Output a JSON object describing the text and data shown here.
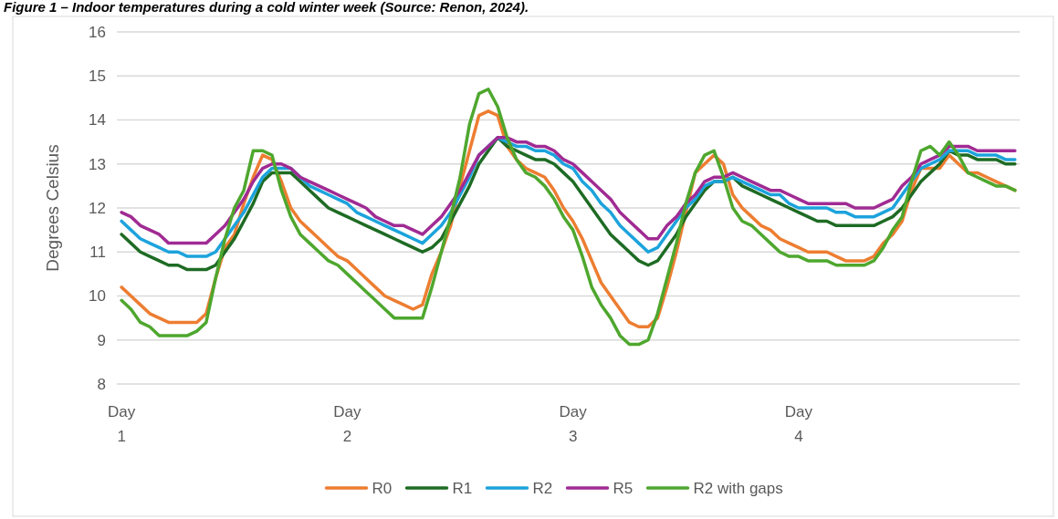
{
  "chart_data": {
    "type": "line",
    "title": "Figure 1 – Indoor temperatures during a cold winter week (Source: Renon, 2024).",
    "ylabel": "Degrees Celsius",
    "categories": [
      "Day 1",
      null,
      null,
      null,
      null,
      null,
      null,
      null,
      null,
      null,
      null,
      null,
      null,
      null,
      null,
      null,
      null,
      null,
      null,
      null,
      null,
      null,
      null,
      null,
      "Day 2",
      null,
      null,
      null,
      null,
      null,
      null,
      null,
      null,
      null,
      null,
      null,
      null,
      null,
      null,
      null,
      null,
      null,
      null,
      null,
      null,
      null,
      null,
      null,
      "Day 3",
      null,
      null,
      null,
      null,
      null,
      null,
      null,
      null,
      null,
      null,
      null,
      null,
      null,
      null,
      null,
      null,
      null,
      null,
      null,
      null,
      null,
      null,
      null,
      "Day 4",
      null,
      null,
      null,
      null,
      null,
      null,
      null,
      null,
      null,
      null,
      null,
      null,
      null,
      null,
      null,
      null,
      null,
      null,
      null,
      null,
      null,
      null,
      null
    ],
    "ylim": [
      8,
      16
    ],
    "yticks": [
      8,
      9,
      10,
      11,
      12,
      13,
      14,
      15,
      16
    ],
    "grid": "y",
    "legend": "bottom",
    "marker": "none",
    "line_style": "solid",
    "series": [
      {
        "name": "R0",
        "color": "#ed7d31",
        "values": [
          10.2,
          10.0,
          9.8,
          9.6,
          9.5,
          9.4,
          9.4,
          9.4,
          9.4,
          9.6,
          10.4,
          11.1,
          11.4,
          12.1,
          12.7,
          13.2,
          13.1,
          12.6,
          12.0,
          11.7,
          11.5,
          11.3,
          11.1,
          10.9,
          10.8,
          10.6,
          10.4,
          10.2,
          10.0,
          9.9,
          9.8,
          9.7,
          9.8,
          10.5,
          11.0,
          11.6,
          12.5,
          13.3,
          14.1,
          14.2,
          14.1,
          13.4,
          13.1,
          12.9,
          12.8,
          12.7,
          12.4,
          12.0,
          11.7,
          11.3,
          10.8,
          10.3,
          10.0,
          9.7,
          9.4,
          9.3,
          9.3,
          9.5,
          10.2,
          11.0,
          11.9,
          12.8,
          13.0,
          13.2,
          13.0,
          12.3,
          12.0,
          11.8,
          11.6,
          11.5,
          11.3,
          11.2,
          11.1,
          11.0,
          11.0,
          11.0,
          10.9,
          10.8,
          10.8,
          10.8,
          10.9,
          11.2,
          11.4,
          11.7,
          12.4,
          12.9,
          12.9,
          12.9,
          13.2,
          13.0,
          12.8,
          12.8,
          12.7,
          12.6,
          12.5,
          12.4
        ]
      },
      {
        "name": "R1",
        "color": "#1e6b24",
        "values": [
          11.4,
          11.2,
          11.0,
          10.9,
          10.8,
          10.7,
          10.7,
          10.6,
          10.6,
          10.6,
          10.7,
          11.0,
          11.3,
          11.7,
          12.1,
          12.6,
          12.8,
          12.8,
          12.8,
          12.6,
          12.4,
          12.2,
          12.0,
          11.9,
          11.8,
          11.7,
          11.6,
          11.5,
          11.4,
          11.3,
          11.2,
          11.1,
          11.0,
          11.1,
          11.3,
          11.7,
          12.1,
          12.5,
          13.0,
          13.3,
          13.6,
          13.4,
          13.3,
          13.2,
          13.1,
          13.1,
          13.0,
          12.8,
          12.6,
          12.3,
          12.0,
          11.7,
          11.4,
          11.2,
          11.0,
          10.8,
          10.7,
          10.8,
          11.1,
          11.4,
          11.8,
          12.1,
          12.4,
          12.6,
          12.6,
          12.7,
          12.5,
          12.4,
          12.3,
          12.2,
          12.1,
          12.0,
          11.9,
          11.8,
          11.7,
          11.7,
          11.6,
          11.6,
          11.6,
          11.6,
          11.6,
          11.7,
          11.8,
          12.0,
          12.3,
          12.6,
          12.8,
          13.0,
          13.3,
          13.2,
          13.2,
          13.1,
          13.1,
          13.1,
          13.0,
          13.0
        ]
      },
      {
        "name": "R2",
        "color": "#1ca3dc",
        "values": [
          11.7,
          11.5,
          11.3,
          11.2,
          11.1,
          11.0,
          11.0,
          10.9,
          10.9,
          10.9,
          11.0,
          11.3,
          11.6,
          11.9,
          12.3,
          12.7,
          12.9,
          12.9,
          12.9,
          12.7,
          12.5,
          12.4,
          12.3,
          12.2,
          12.1,
          11.9,
          11.8,
          11.7,
          11.6,
          11.5,
          11.4,
          11.3,
          11.2,
          11.4,
          11.6,
          11.9,
          12.3,
          12.7,
          13.2,
          13.4,
          13.6,
          13.5,
          13.4,
          13.4,
          13.3,
          13.3,
          13.2,
          13.0,
          12.9,
          12.6,
          12.4,
          12.1,
          11.9,
          11.6,
          11.4,
          11.2,
          11.0,
          11.1,
          11.4,
          11.7,
          12.0,
          12.2,
          12.5,
          12.6,
          12.6,
          12.7,
          12.6,
          12.5,
          12.4,
          12.3,
          12.3,
          12.1,
          12.0,
          12.0,
          12.0,
          12.0,
          11.9,
          11.9,
          11.8,
          11.8,
          11.8,
          11.9,
          12.0,
          12.3,
          12.6,
          12.9,
          13.0,
          13.1,
          13.3,
          13.3,
          13.3,
          13.2,
          13.2,
          13.2,
          13.1,
          13.1
        ]
      },
      {
        "name": "R5",
        "color": "#a02b93",
        "values": [
          11.9,
          11.8,
          11.6,
          11.5,
          11.4,
          11.2,
          11.2,
          11.2,
          11.2,
          11.2,
          11.4,
          11.6,
          11.9,
          12.2,
          12.6,
          12.9,
          13.0,
          13.0,
          12.9,
          12.7,
          12.6,
          12.5,
          12.4,
          12.3,
          12.2,
          12.1,
          12.0,
          11.8,
          11.7,
          11.6,
          11.6,
          11.5,
          11.4,
          11.6,
          11.8,
          12.1,
          12.4,
          12.8,
          13.2,
          13.4,
          13.6,
          13.6,
          13.5,
          13.5,
          13.4,
          13.4,
          13.3,
          13.1,
          13.0,
          12.8,
          12.6,
          12.4,
          12.2,
          11.9,
          11.7,
          11.5,
          11.3,
          11.3,
          11.6,
          11.8,
          12.1,
          12.3,
          12.6,
          12.7,
          12.7,
          12.8,
          12.7,
          12.6,
          12.5,
          12.4,
          12.4,
          12.3,
          12.2,
          12.1,
          12.1,
          12.1,
          12.1,
          12.1,
          12.0,
          12.0,
          12.0,
          12.1,
          12.2,
          12.5,
          12.7,
          13.0,
          13.1,
          13.2,
          13.4,
          13.4,
          13.4,
          13.3,
          13.3,
          13.3,
          13.3,
          13.3
        ]
      },
      {
        "name": "R2 with gaps",
        "color": "#4ea72e",
        "values": [
          9.9,
          9.7,
          9.4,
          9.3,
          9.1,
          9.1,
          9.1,
          9.1,
          9.2,
          9.4,
          10.4,
          11.3,
          12.0,
          12.4,
          13.3,
          13.3,
          13.2,
          12.4,
          11.8,
          11.4,
          11.2,
          11.0,
          10.8,
          10.7,
          10.5,
          10.3,
          10.1,
          9.9,
          9.7,
          9.5,
          9.5,
          9.5,
          9.5,
          10.2,
          11.0,
          11.8,
          12.7,
          13.9,
          14.6,
          14.7,
          14.3,
          13.6,
          13.1,
          12.8,
          12.7,
          12.5,
          12.2,
          11.8,
          11.5,
          10.9,
          10.2,
          9.8,
          9.5,
          9.1,
          8.9,
          8.9,
          9.0,
          9.6,
          10.4,
          11.2,
          12.1,
          12.8,
          13.2,
          13.3,
          12.7,
          12.0,
          11.7,
          11.6,
          11.4,
          11.2,
          11.0,
          10.9,
          10.9,
          10.8,
          10.8,
          10.8,
          10.7,
          10.7,
          10.7,
          10.7,
          10.8,
          11.1,
          11.5,
          11.8,
          12.6,
          13.3,
          13.4,
          13.2,
          13.5,
          13.2,
          12.8,
          12.7,
          12.6,
          12.5,
          12.5,
          12.4
        ]
      }
    ]
  }
}
